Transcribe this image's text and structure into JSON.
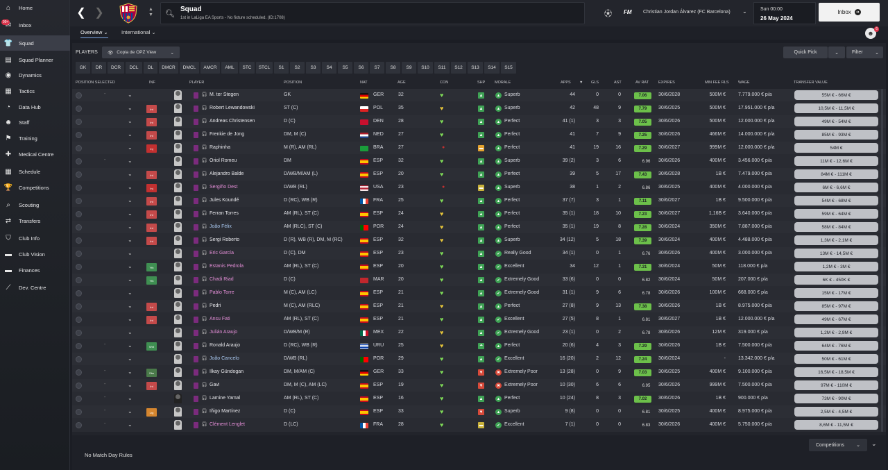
{
  "sidebar": {
    "items": [
      {
        "label": "Home",
        "icon": "home-icon",
        "glyph": "⌂"
      },
      {
        "label": "Inbox",
        "icon": "inbox-icon",
        "glyph": "✉",
        "badge": "99+"
      },
      {
        "label": "Squad",
        "icon": "squad-icon",
        "glyph": "👕",
        "active": true
      },
      {
        "label": "Squad Planner",
        "icon": "squad-planner-icon",
        "glyph": "▤"
      },
      {
        "label": "Dynamics",
        "icon": "dynamics-icon",
        "glyph": "◉"
      },
      {
        "label": "Tactics",
        "icon": "tactics-icon",
        "glyph": "▦"
      },
      {
        "label": "Data Hub",
        "icon": "data-hub-icon",
        "glyph": "◔"
      },
      {
        "label": "Staff",
        "icon": "staff-icon",
        "glyph": "☻"
      },
      {
        "label": "Training",
        "icon": "training-icon",
        "glyph": "⚑"
      },
      {
        "label": "Medical Centre",
        "icon": "medical-centre-icon",
        "glyph": "✚"
      },
      {
        "label": "Schedule",
        "icon": "schedule-icon",
        "glyph": "▦"
      },
      {
        "label": "Competitions",
        "icon": "competitions-icon",
        "glyph": "🏆"
      },
      {
        "label": "Scouting",
        "icon": "scouting-icon",
        "glyph": "⌕"
      },
      {
        "label": "Transfers",
        "icon": "transfers-icon",
        "glyph": "⇄"
      },
      {
        "label": "Club Info",
        "icon": "club-info-icon",
        "glyph": "⛉"
      },
      {
        "label": "Club Vision",
        "icon": "club-vision-icon",
        "glyph": "▬"
      },
      {
        "label": "Finances",
        "icon": "finances-icon",
        "glyph": "▬"
      },
      {
        "label": "Dev. Centre",
        "icon": "dev-centre-icon",
        "glyph": "⟋"
      }
    ]
  },
  "header": {
    "title": "Squad",
    "subtitle": "1st in LaLiga EA Sports - No fixture scheduled. (ID:1708)",
    "fm_label": "FM",
    "manager": "Christian Jordan Álvarez (FC Barcelona)",
    "date_day": "Sun 00:00",
    "date": "26 May 2024",
    "inbox_label": "Inbox",
    "notifications": "6"
  },
  "subnav": {
    "overview": "Overview",
    "international": "International"
  },
  "toolbar": {
    "players_label": "PLAYERS",
    "view_label": "Copia de OPZ View",
    "quick_pick": "Quick Pick",
    "filter": "Filter"
  },
  "positions": [
    "GK",
    "DR",
    "DCR",
    "DCL",
    "DL",
    "DMCR",
    "DMCL",
    "AMCR",
    "AML",
    "STC",
    "STCL",
    "S1",
    "S2",
    "S3",
    "S4",
    "S5",
    "S6",
    "S7",
    "S8",
    "S9",
    "S10",
    "S11",
    "S12",
    "S13",
    "S14",
    "S15"
  ],
  "columns": {
    "pos_sel": "POSITION SELECTED",
    "inf": "INF",
    "player": "PLAYER",
    "position": "POSITION",
    "nat": "NAT",
    "age": "AGE",
    "con": "CON",
    "shp": "SHP",
    "morale": "MORALE",
    "apps": "APPS",
    "gls": "GLS",
    "ast": "AST",
    "avrat": "AV RAT",
    "expires": "EXPIRES",
    "minfee": "MIN FEE RLS",
    "wage": "WAGE",
    "tv": "TRANSFER VALUE"
  },
  "colors": {
    "inf_int": "#c44a4a",
    "inf_inj": "#c23030",
    "inf_yth": "#3f8f52",
    "inf_wnt": "#3f8f52",
    "inf_sbs": "#4a7a4a",
    "inf_lrg": "#d5862f",
    "rating_high": "#6cc04a",
    "rating_mid": "#a8d46a",
    "condition_green": "#7ed957",
    "condition_yellow": "#e5c43a",
    "loan_link": "#a9c8f0",
    "transfer_pink": "#e58fd8"
  },
  "players": [
    {
      "sel": "-",
      "chev": "⌄",
      "inf": "",
      "face": "",
      "name": "M. ter Stegen",
      "pos": "GK",
      "nat": "GER",
      "flag": "ger",
      "age": "32",
      "con": "green",
      "shp": "up",
      "mor": "Superb",
      "apps": "44",
      "gls": "0",
      "ast": "0",
      "rat": "7.06",
      "rc": "high",
      "exp": "30/6/2028",
      "fee": "500M €",
      "wage": "7.779.000 € p/a",
      "tv": "55M € - 66M €",
      "style": "normal"
    },
    {
      "sel": "",
      "chev": "⌄",
      "inf": "Int",
      "face": "",
      "name": "Robert Lewandowski",
      "pos": "ST (C)",
      "nat": "POL",
      "flag": "pol",
      "age": "35",
      "con": "yellow",
      "shp": "up",
      "mor": "Superb",
      "apps": "42",
      "gls": "48",
      "ast": "9",
      "rat": "7.79",
      "rc": "high",
      "exp": "30/6/2025",
      "fee": "500M €",
      "wage": "17.951.000 € p/a",
      "tv": "10,5M € - 11,5M €",
      "style": "normal"
    },
    {
      "sel": "",
      "chev": "⌄",
      "inf": "Int",
      "face": "",
      "name": "Andreas Christensen",
      "pos": "D (C)",
      "nat": "DEN",
      "flag": "den",
      "age": "28",
      "con": "green",
      "shp": "up",
      "mor": "Perfect",
      "apps": "41 (1)",
      "gls": "3",
      "ast": "3",
      "rat": "7.05",
      "rc": "high",
      "exp": "30/6/2026",
      "fee": "500M €",
      "wage": "12.000.000 € p/a",
      "tv": "49M € - 54M €",
      "style": "normal"
    },
    {
      "sel": "",
      "chev": "⌄",
      "inf": "Int",
      "face": "",
      "name": "Frenkie de Jong",
      "pos": "DM, M (C)",
      "nat": "NED",
      "flag": "ned",
      "age": "27",
      "con": "green",
      "shp": "up",
      "mor": "Perfect",
      "apps": "41",
      "gls": "7",
      "ast": "9",
      "rat": "7.25",
      "rc": "high",
      "exp": "30/6/2026",
      "fee": "466M €",
      "wage": "14.000.000 € p/a",
      "tv": "85M € - 93M €",
      "style": "normal"
    },
    {
      "sel": "",
      "chev": "⌄",
      "inf": "Inj",
      "face": "",
      "name": "Raphinha",
      "pos": "M (R), AM (RL)",
      "nat": "BRA",
      "flag": "bra",
      "age": "27",
      "con": "red",
      "shp": "mid",
      "mor": "Perfect",
      "apps": "41",
      "gls": "19",
      "ast": "16",
      "rat": "7.29",
      "rc": "high",
      "exp": "30/6/2027",
      "fee": "999M €",
      "wage": "12.000.000 € p/a",
      "tv": "54M €",
      "style": "normal"
    },
    {
      "sel": "-",
      "chev": "⌄",
      "inf": "",
      "face": "",
      "name": "Oriol Romeu",
      "pos": "DM",
      "nat": "ESP",
      "flag": "esp",
      "age": "32",
      "con": "green",
      "shp": "up",
      "mor": "Superb",
      "apps": "39 (2)",
      "gls": "3",
      "ast": "6",
      "rat": "6.96",
      "rc": "none",
      "exp": "30/6/2026",
      "fee": "400M €",
      "wage": "3.456.000 € p/a",
      "tv": "11M € - 12,6M €",
      "style": "normal"
    },
    {
      "sel": "",
      "chev": "⌄",
      "inf": "Int",
      "face": "",
      "name": "Alejandro Balde",
      "pos": "D/WB/M/AM (L)",
      "nat": "ESP",
      "flag": "esp",
      "age": "20",
      "con": "green",
      "shp": "up",
      "mor": "Perfect",
      "apps": "39",
      "gls": "5",
      "ast": "17",
      "rat": "7.43",
      "rc": "high",
      "exp": "30/6/2028",
      "fee": "1B €",
      "wage": "7.479.000 € p/a",
      "tv": "84M € - 111M €",
      "style": "normal"
    },
    {
      "sel": "",
      "chev": "⌄",
      "inf": "Inj",
      "face": "",
      "name": "Sergiño Dest",
      "pos": "D/WB (RL)",
      "nat": "USA",
      "flag": "usa",
      "age": "23",
      "con": "red",
      "shp": "flat",
      "mor": "Superb",
      "apps": "38",
      "gls": "1",
      "ast": "2",
      "rat": "6.86",
      "rc": "none",
      "exp": "30/6/2025",
      "fee": "400M €",
      "wage": "4.000.000 € p/a",
      "tv": "6M € - 6,6M €",
      "style": "pink"
    },
    {
      "sel": "",
      "chev": "⌄",
      "inf": "Int",
      "face": "",
      "name": "Jules Koundé",
      "pos": "D (RC), WB (R)",
      "nat": "FRA",
      "flag": "fra",
      "age": "25",
      "con": "green",
      "shp": "up",
      "mor": "Perfect",
      "apps": "37 (7)",
      "gls": "3",
      "ast": "1",
      "rat": "7.11",
      "rc": "high",
      "exp": "30/6/2027",
      "fee": "1B €",
      "wage": "9.500.000 € p/a",
      "tv": "54M € - 68M €",
      "style": "normal"
    },
    {
      "sel": "",
      "chev": "⌄",
      "inf": "Int",
      "face": "",
      "name": "Ferran Torres",
      "pos": "AM (RL), ST (C)",
      "nat": "ESP",
      "flag": "esp",
      "age": "24",
      "con": "yellow",
      "shp": "up",
      "mor": "Perfect",
      "apps": "35 (1)",
      "gls": "18",
      "ast": "10",
      "rat": "7.23",
      "rc": "high",
      "exp": "30/6/2027",
      "fee": "1,16B €",
      "wage": "3.640.000 € p/a",
      "tv": "59M € - 64M €",
      "style": "normal"
    },
    {
      "sel": "",
      "chev": "⌄",
      "inf": "Int",
      "face": "",
      "name": "João Félix",
      "pos": "AM (RLC), ST (C)",
      "nat": "POR",
      "flag": "por",
      "age": "24",
      "con": "yellow",
      "shp": "up",
      "mor": "Perfect",
      "apps": "35 (1)",
      "gls": "19",
      "ast": "8",
      "rat": "7.28",
      "rc": "high",
      "exp": "30/6/2024",
      "fee": "350M €",
      "wage": "7.887.000 € p/a",
      "tv": "58M € - 84M €",
      "style": "loan"
    },
    {
      "sel": "",
      "chev": "⌄",
      "inf": "Int",
      "face": "",
      "name": "Sergi Roberto",
      "pos": "D (R), WB (R), DM, M (RC)",
      "nat": "ESP",
      "flag": "esp",
      "age": "32",
      "con": "yellow",
      "shp": "up",
      "mor": "Superb",
      "apps": "34 (12)",
      "gls": "5",
      "ast": "18",
      "rat": "7.39",
      "rc": "high",
      "exp": "30/6/2024",
      "fee": "400M €",
      "wage": "4.488.000 € p/a",
      "tv": "1,3M € - 2,1M €",
      "style": "normal"
    },
    {
      "sel": "",
      "chev": "⌄",
      "inf": "",
      "face": "",
      "name": "Eric García",
      "pos": "D (C), DM",
      "nat": "ESP",
      "flag": "esp",
      "age": "23",
      "con": "green",
      "shp": "up",
      "mor": "Really Good",
      "apps": "34 (1)",
      "gls": "0",
      "ast": "1",
      "rat": "6.76",
      "rc": "none",
      "exp": "30/6/2026",
      "fee": "400M €",
      "wage": "3.000.000 € p/a",
      "tv": "13M € - 14,5M €",
      "style": "pink"
    },
    {
      "sel": "",
      "chev": "⌄",
      "inf": "Yth",
      "face": "",
      "name": "Estanis Pedrola",
      "pos": "AM (RL), ST (C)",
      "nat": "ESP",
      "flag": "esp",
      "age": "20",
      "con": "green",
      "shp": "up",
      "mor": "Excellent",
      "apps": "34",
      "gls": "12",
      "ast": "1",
      "rat": "7.31",
      "rc": "high",
      "exp": "30/6/2024",
      "fee": "50M €",
      "wage": "118.000 € p/a",
      "tv": "1,2M € - 3M €",
      "style": "pink"
    },
    {
      "sel": "",
      "chev": "⌄",
      "inf": "Yth",
      "face": "",
      "name": "Chadi Riad",
      "pos": "D (C)",
      "nat": "MAR",
      "flag": "mar",
      "age": "20",
      "con": "green",
      "shp": "up",
      "mor": "Extremely Good",
      "apps": "33 (6)",
      "gls": "0",
      "ast": "0",
      "rat": "6.82",
      "rc": "none",
      "exp": "30/6/2024",
      "fee": "50M €",
      "wage": "207.000 € p/a",
      "tv": "6K € - 450K €",
      "style": "pink"
    },
    {
      "sel": "",
      "chev": "⌄",
      "inf": "",
      "face": "",
      "name": "Pablo Torre",
      "pos": "M (C), AM (LC)",
      "nat": "ESP",
      "flag": "esp",
      "age": "21",
      "con": "green",
      "shp": "up",
      "mor": "Extremely Good",
      "apps": "31 (1)",
      "gls": "9",
      "ast": "6",
      "rat": "6.78",
      "rc": "none",
      "exp": "30/6/2026",
      "fee": "100M €",
      "wage": "668.000 € p/a",
      "tv": "15M € - 17M €",
      "style": "pink"
    },
    {
      "sel": "",
      "chev": "⌄",
      "inf": "Int",
      "face": "",
      "name": "Pedri",
      "pos": "M (C), AM (RLC)",
      "nat": "ESP",
      "flag": "esp",
      "age": "21",
      "con": "yellow",
      "shp": "up",
      "mor": "Perfect",
      "apps": "27 (8)",
      "gls": "9",
      "ast": "13",
      "rat": "7.38",
      "rc": "high",
      "exp": "30/6/2026",
      "fee": "1B €",
      "wage": "8.975.000 € p/a",
      "tv": "85M € - 97M €",
      "style": "normal"
    },
    {
      "sel": "",
      "chev": "⌄",
      "inf": "Int",
      "face": "",
      "name": "Ansu Fati",
      "pos": "AM (RL), ST (C)",
      "nat": "ESP",
      "flag": "esp",
      "age": "21",
      "con": "green",
      "shp": "up",
      "mor": "Excellent",
      "apps": "27 (5)",
      "gls": "8",
      "ast": "1",
      "rat": "6.81",
      "rc": "none",
      "exp": "30/6/2027",
      "fee": "1B €",
      "wage": "12.000.000 € p/a",
      "tv": "49M € - 67M €",
      "style": "pink"
    },
    {
      "sel": "",
      "chev": "⌄",
      "inf": "",
      "face": "",
      "name": "Julián Araujo",
      "pos": "D/WB/M (R)",
      "nat": "MEX",
      "flag": "mex",
      "age": "22",
      "con": "yellow",
      "shp": "up",
      "mor": "Extremely Good",
      "apps": "23 (1)",
      "gls": "0",
      "ast": "2",
      "rat": "6.78",
      "rc": "none",
      "exp": "30/6/2026",
      "fee": "12M €",
      "wage": "319.000 € p/a",
      "tv": "1,2M € - 2,9M €",
      "style": "pink"
    },
    {
      "sel": "-",
      "chev": "⌄",
      "inf": "Wnt",
      "face": "",
      "name": "Ronald Araujo",
      "pos": "D (RC), WB (R)",
      "nat": "URU",
      "flag": "uru",
      "age": "25",
      "con": "yellow",
      "shp": "upup",
      "mor": "Perfect",
      "apps": "20 (6)",
      "gls": "4",
      "ast": "3",
      "rat": "7.29",
      "rc": "high",
      "exp": "30/6/2026",
      "fee": "1B €",
      "wage": "7.500.000 € p/a",
      "tv": "64M € - 76M €",
      "style": "normal"
    },
    {
      "sel": "",
      "chev": "⌄",
      "inf": "",
      "face": "",
      "name": "João Cancelo",
      "pos": "D/WB (RL)",
      "nat": "POR",
      "flag": "por",
      "age": "29",
      "con": "green",
      "shp": "up",
      "mor": "Excellent",
      "apps": "16 (20)",
      "gls": "2",
      "ast": "12",
      "rat": "7.24",
      "rc": "high",
      "exp": "30/6/2024",
      "fee": "-",
      "wage": "13.342.000 € p/a",
      "tv": "50M € - 61M €",
      "style": "loan"
    },
    {
      "sel": "-",
      "chev": "⌄",
      "inf": "Sbs",
      "face": "",
      "name": "Ilkay Gündogan",
      "pos": "DM, M/AM (C)",
      "nat": "GER",
      "flag": "ger",
      "age": "33",
      "con": "green",
      "shp": "down",
      "mor": "Extremely Poor",
      "apps": "13 (28)",
      "gls": "0",
      "ast": "9",
      "rat": "7.03",
      "rc": "high",
      "exp": "30/6/2025",
      "fee": "400M €",
      "wage": "9.100.000 € p/a",
      "tv": "16,5M € - 18,5M €",
      "style": "normal"
    },
    {
      "sel": "-",
      "chev": "⌄",
      "inf": "Int",
      "face": "",
      "name": "Gavi",
      "pos": "DM, M (C), AM (LC)",
      "nat": "ESP",
      "flag": "esp",
      "age": "19",
      "con": "green",
      "shp": "down",
      "mor": "Extremely Poor",
      "apps": "10 (30)",
      "gls": "6",
      "ast": "6",
      "rat": "6.95",
      "rc": "none",
      "exp": "30/6/2026",
      "fee": "999M €",
      "wage": "7.500.000 € p/a",
      "tv": "97M € - 110M €",
      "style": "normal"
    },
    {
      "sel": "-",
      "chev": "⌄",
      "inf": "",
      "face": "",
      "name": "Lamine Yamal",
      "pos": "AM (RL), ST (C)",
      "nat": "ESP",
      "flag": "esp",
      "age": "16",
      "con": "green",
      "shp": "up",
      "mor": "Perfect",
      "apps": "10 (24)",
      "gls": "8",
      "ast": "3",
      "rat": "7.02",
      "rc": "high",
      "exp": "30/6/2026",
      "fee": "1B €",
      "wage": "900.000 € p/a",
      "tv": "73M € - 90M €",
      "style": "normal"
    },
    {
      "sel": "-",
      "chev": "⌄",
      "inf": "Lrg",
      "face": "",
      "name": "Iñigo Martínez",
      "pos": "D (C)",
      "nat": "ESP",
      "flag": "esp",
      "age": "33",
      "con": "green",
      "shp": "down",
      "mor": "Superb",
      "apps": "9 (8)",
      "gls": "0",
      "ast": "0",
      "rat": "6.81",
      "rc": "none",
      "exp": "30/6/2025",
      "fee": "400M €",
      "wage": "8.975.000 € p/a",
      "tv": "2,5M € - 4,5M €",
      "style": "normal"
    },
    {
      "sel": "-",
      "chev": "⌄",
      "inf": "",
      "face": "",
      "name": "Clément Lenglet",
      "pos": "D (LC)",
      "nat": "FRA",
      "flag": "fra",
      "age": "28",
      "con": "green",
      "shp": "flat",
      "mor": "Excellent",
      "apps": "7 (1)",
      "gls": "0",
      "ast": "0",
      "rat": "6.83",
      "rc": "none",
      "exp": "30/6/2026",
      "fee": "400M €",
      "wage": "5.750.000 € p/a",
      "tv": "8,6M € - 11,5M €",
      "style": "pink"
    }
  ],
  "footer": {
    "no_match_day": "No Match Day Rules",
    "competitions": "Competitions"
  }
}
